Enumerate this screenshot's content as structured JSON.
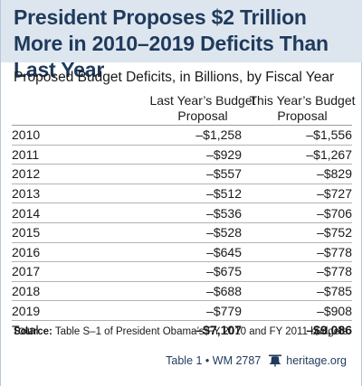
{
  "title": "President Proposes $2 Trillion More in 2010–2019 Deficits Than Last Year",
  "subtitle": "Proposed Budget Deficits, in Billions, by Fiscal Year",
  "columns": {
    "last_year": "Last Year’s Budget Proposal",
    "this_year": "This Year’s Budget Proposal"
  },
  "rows": [
    {
      "year": "2010",
      "last": "–$1,258",
      "this": "–$1,556"
    },
    {
      "year": "2011",
      "last": "–$929",
      "this": "–$1,267"
    },
    {
      "year": "2012",
      "last": "–$557",
      "this": "–$829"
    },
    {
      "year": "2013",
      "last": "–$512",
      "this": "–$727"
    },
    {
      "year": "2014",
      "last": "–$536",
      "this": "–$706"
    },
    {
      "year": "2015",
      "last": "–$528",
      "this": "–$752"
    },
    {
      "year": "2016",
      "last": "–$645",
      "this": "–$778"
    },
    {
      "year": "2017",
      "last": "–$675",
      "this": "–$778"
    },
    {
      "year": "2018",
      "last": "–$688",
      "this": "–$785"
    },
    {
      "year": "2019",
      "last": "–$779",
      "this": "–$908"
    }
  ],
  "total": {
    "label": "Total",
    "last": "–$7,107",
    "this": "–$9,086"
  },
  "source": {
    "label": "Source:",
    "text": "Table S–1 of President Obama’s FY 2010 and FY 2011 budgets."
  },
  "footer": {
    "table_ref": "Table 1 • WM 2787",
    "site": "heritage.org",
    "icon": "liberty-bell-icon",
    "accent_color": "#1f3a5c",
    "header_bg": "#dde6ef"
  }
}
